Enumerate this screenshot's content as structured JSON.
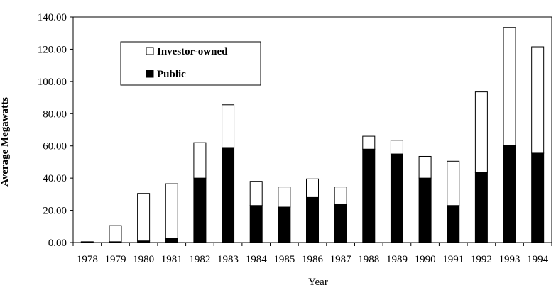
{
  "chart_data": {
    "type": "bar",
    "stacked": true,
    "categories": [
      "1978",
      "1979",
      "1980",
      "1981",
      "1982",
      "1983",
      "1984",
      "1985",
      "1986",
      "1987",
      "1988",
      "1989",
      "1990",
      "1991",
      "1992",
      "1993",
      "1994"
    ],
    "series": [
      {
        "name": "Public",
        "color": "#000000",
        "values": [
          0.5,
          0.5,
          1.0,
          2.5,
          40.0,
          59.0,
          23.0,
          22.0,
          28.0,
          24.0,
          58.0,
          55.0,
          40.0,
          23.0,
          43.5,
          60.5,
          55.5
        ]
      },
      {
        "name": "Investor-owned",
        "color": "#ffffff",
        "values": [
          0.0,
          10.0,
          29.5,
          34.0,
          22.0,
          26.5,
          15.0,
          12.5,
          11.5,
          10.5,
          8.0,
          8.5,
          13.5,
          27.5,
          50.0,
          73.0,
          66.0
        ]
      }
    ],
    "xlabel": "Year",
    "ylabel": "Average Megawatts",
    "ylim": [
      0,
      140
    ],
    "yticks": [
      "0.00",
      "20.00",
      "40.00",
      "60.00",
      "80.00",
      "100.00",
      "120.00",
      "140.00"
    ],
    "legend": {
      "position": "top-left",
      "entries": [
        {
          "label": "Investor-owned",
          "fill": "#ffffff"
        },
        {
          "label": "Public",
          "fill": "#000000"
        }
      ]
    },
    "grid": false
  }
}
